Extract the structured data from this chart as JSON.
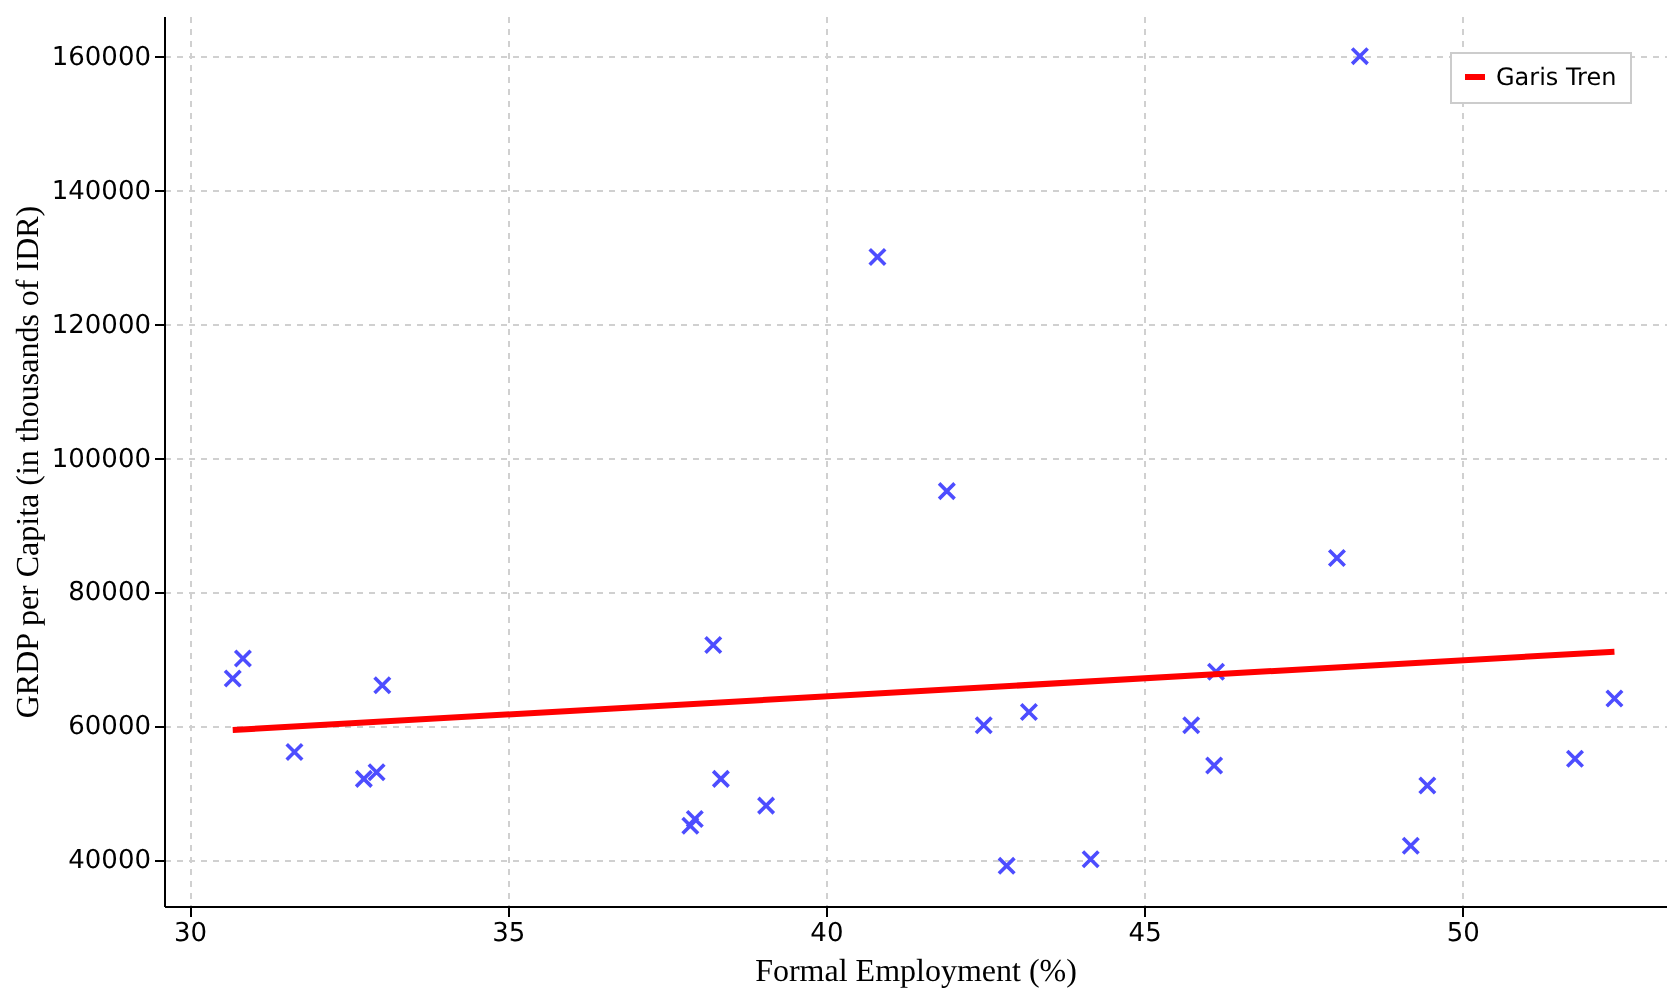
{
  "chart_data": {
    "type": "scatter",
    "xlabel": "Formal Employment (%)",
    "ylabel": "GRDP per Capita  (in thousands of IDR)",
    "xlim": [
      29.6,
      53.2
    ],
    "ylim": [
      33000,
      166000
    ],
    "xticks": [
      30,
      35,
      40,
      45,
      50
    ],
    "yticks": [
      40000,
      60000,
      80000,
      100000,
      120000,
      140000,
      160000
    ],
    "grid": true,
    "legend": "top right",
    "series": [
      {
        "color": "#4d4dff",
        "marker": "cross",
        "x": [
          30.68,
          30.84,
          31.65,
          32.74,
          32.94,
          33.03,
          37.87,
          37.94,
          38.23,
          38.35,
          39.06,
          40.81,
          41.9,
          42.48,
          42.84,
          43.19,
          44.16,
          45.74,
          46.1,
          46.13,
          48.03,
          48.39,
          49.19,
          49.45,
          51.77,
          52.39
        ],
        "values": [
          67000,
          70000,
          56000,
          52000,
          53000,
          66000,
          45000,
          46000,
          72000,
          52000,
          48000,
          130000,
          95000,
          60000,
          39000,
          62000,
          40000,
          60000,
          54000,
          68000,
          85000,
          160000,
          42000,
          51000,
          55000,
          64000
        ]
      },
      {
        "type": "line",
        "name": "Garis Tren",
        "color": "#ff0000",
        "line_style": "solid",
        "x": [
          30.68,
          52.39
        ],
        "values": [
          59300,
          71000
        ]
      }
    ]
  }
}
